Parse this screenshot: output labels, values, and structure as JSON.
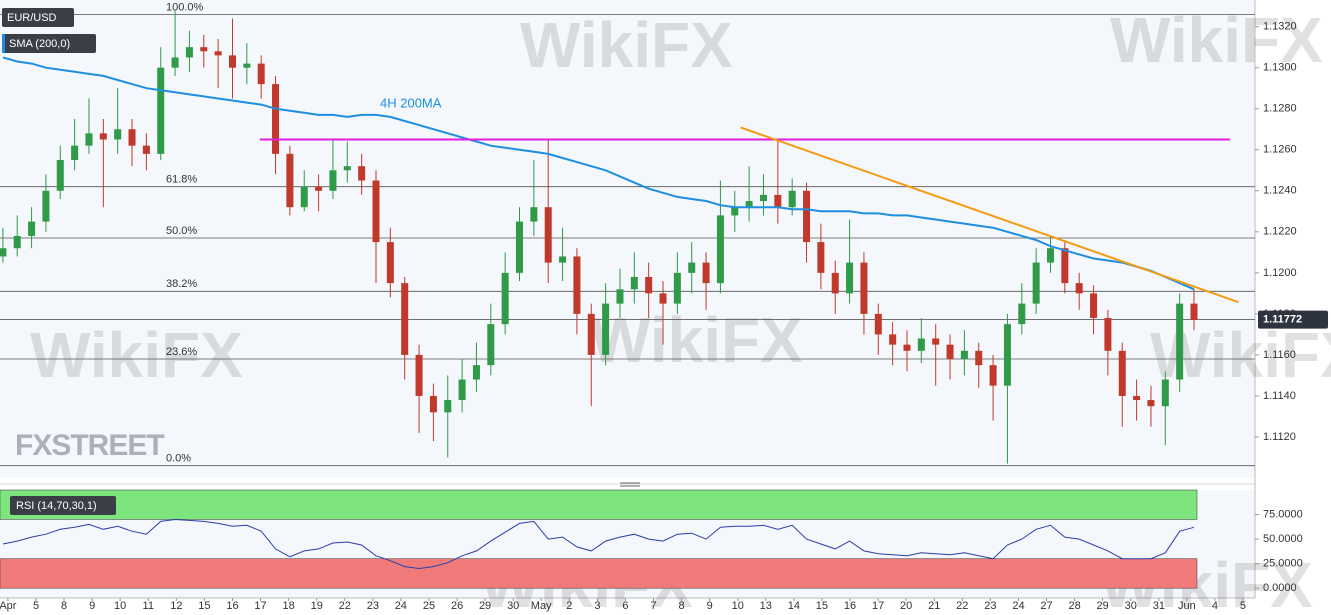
{
  "branding": {
    "watermark": "WikiFX",
    "logo": "FXSTREET"
  },
  "chart_data": [
    {
      "type": "candlestick",
      "title": "EUR/USD",
      "up_color": "#2f9a48",
      "down_color": "#c0392b",
      "xlim": [
        -0.2,
        87.25
      ],
      "xticks": [
        {
          "value": 0.35,
          "label": "Apr"
        },
        {
          "value": 2.31,
          "label": "5"
        },
        {
          "value": 4.26,
          "label": "8"
        },
        {
          "value": 6.22,
          "label": "9"
        },
        {
          "value": 8.17,
          "label": "10"
        },
        {
          "value": 10.13,
          "label": "11"
        },
        {
          "value": 12.09,
          "label": "12"
        },
        {
          "value": 14.04,
          "label": "15"
        },
        {
          "value": 16.0,
          "label": "16"
        },
        {
          "value": 17.95,
          "label": "17"
        },
        {
          "value": 19.91,
          "label": "18"
        },
        {
          "value": 21.87,
          "label": "19"
        },
        {
          "value": 23.82,
          "label": "22"
        },
        {
          "value": 25.78,
          "label": "23"
        },
        {
          "value": 27.73,
          "label": "24"
        },
        {
          "value": 29.69,
          "label": "25"
        },
        {
          "value": 31.65,
          "label": "26"
        },
        {
          "value": 33.6,
          "label": "29"
        },
        {
          "value": 35.56,
          "label": "30"
        },
        {
          "value": 37.51,
          "label": "May"
        },
        {
          "value": 39.47,
          "label": "2"
        },
        {
          "value": 41.43,
          "label": "3"
        },
        {
          "value": 43.38,
          "label": "6"
        },
        {
          "value": 45.34,
          "label": "7"
        },
        {
          "value": 47.29,
          "label": "8"
        },
        {
          "value": 49.25,
          "label": "9"
        },
        {
          "value": 51.21,
          "label": "10"
        },
        {
          "value": 53.16,
          "label": "13"
        },
        {
          "value": 55.12,
          "label": "14"
        },
        {
          "value": 57.07,
          "label": "15"
        },
        {
          "value": 59.03,
          "label": "16"
        },
        {
          "value": 60.99,
          "label": "17"
        },
        {
          "value": 62.94,
          "label": "20"
        },
        {
          "value": 64.9,
          "label": "21"
        },
        {
          "value": 66.85,
          "label": "22"
        },
        {
          "value": 68.81,
          "label": "23"
        },
        {
          "value": 70.77,
          "label": "24"
        },
        {
          "value": 72.72,
          "label": "27"
        },
        {
          "value": 74.68,
          "label": "28"
        },
        {
          "value": 76.63,
          "label": "29"
        },
        {
          "value": 78.59,
          "label": "30"
        },
        {
          "value": 80.55,
          "label": "31"
        },
        {
          "value": 82.5,
          "label": "Jun"
        },
        {
          "value": 84.46,
          "label": "4"
        },
        {
          "value": 86.41,
          "label": "5"
        }
      ],
      "ylim": [
        1.11,
        1.1333
      ],
      "yticks": [
        {
          "value": 1.112,
          "label": "1.1120"
        },
        {
          "value": 1.114,
          "label": "1.1140"
        },
        {
          "value": 1.116,
          "label": "1.1160"
        },
        {
          "value": 1.118,
          "label": "1.1180"
        },
        {
          "value": 1.12,
          "label": "1.1200"
        },
        {
          "value": 1.122,
          "label": "1.1220"
        },
        {
          "value": 1.124,
          "label": "1.1240"
        },
        {
          "value": 1.126,
          "label": "1.1260"
        },
        {
          "value": 1.128,
          "label": "1.1280"
        },
        {
          "value": 1.13,
          "label": "1.1300"
        },
        {
          "value": 1.132,
          "label": "1.1320"
        }
      ],
      "open": [
        1.1208,
        1.1212,
        1.1218,
        1.1225,
        1.124,
        1.1255,
        1.1262,
        1.1268,
        1.1265,
        1.127,
        1.1262,
        1.1258,
        1.13,
        1.1305,
        1.131,
        1.1308,
        1.1306,
        1.13,
        1.1302,
        1.1292,
        1.1258,
        1.1232,
        1.1242,
        1.124,
        1.125,
        1.1252,
        1.1245,
        1.1215,
        1.1195,
        1.116,
        1.114,
        1.1132,
        1.1138,
        1.1148,
        1.1155,
        1.1175,
        1.12,
        1.1225,
        1.1232,
        1.1205,
        1.1208,
        1.118,
        1.116,
        1.1185,
        1.1192,
        1.1198,
        1.119,
        1.1185,
        1.12,
        1.1205,
        1.1195,
        1.1228,
        1.1232,
        1.1235,
        1.1238,
        1.1232,
        1.124,
        1.1215,
        1.12,
        1.119,
        1.1205,
        1.118,
        1.117,
        1.1165,
        1.1162,
        1.1168,
        1.1165,
        1.1158,
        1.1162,
        1.1155,
        1.1145,
        1.1175,
        1.1185,
        1.1205,
        1.1212,
        1.1195,
        1.119,
        1.1178,
        1.1162,
        1.114,
        1.1138,
        1.1135,
        1.1148,
        1.1185
      ],
      "high": [
        1.1222,
        1.1228,
        1.1232,
        1.1248,
        1.1262,
        1.1275,
        1.1285,
        1.1275,
        1.129,
        1.1275,
        1.1268,
        1.131,
        1.1328,
        1.1318,
        1.1316,
        1.1314,
        1.1324,
        1.1312,
        1.1306,
        1.1296,
        1.1262,
        1.125,
        1.1248,
        1.1265,
        1.1264,
        1.1258,
        1.125,
        1.1222,
        1.1198,
        1.1165,
        1.1146,
        1.115,
        1.1158,
        1.1166,
        1.1185,
        1.121,
        1.1232,
        1.1255,
        1.1265,
        1.1222,
        1.1212,
        1.1185,
        1.1195,
        1.1202,
        1.121,
        1.1205,
        1.1196,
        1.121,
        1.1215,
        1.121,
        1.1245,
        1.124,
        1.1252,
        1.1248,
        1.1265,
        1.1246,
        1.1244,
        1.1224,
        1.1206,
        1.1226,
        1.121,
        1.1185,
        1.1176,
        1.1172,
        1.1178,
        1.1175,
        1.117,
        1.1172,
        1.1166,
        1.116,
        1.118,
        1.1195,
        1.1212,
        1.1218,
        1.1216,
        1.12,
        1.1194,
        1.1182,
        1.1166,
        1.1148,
        1.1145,
        1.1152,
        1.119,
        1.1192
      ],
      "low": [
        1.1205,
        1.1208,
        1.1212,
        1.122,
        1.1236,
        1.125,
        1.1258,
        1.1232,
        1.1258,
        1.1252,
        1.125,
        1.1255,
        1.1296,
        1.1298,
        1.13,
        1.129,
        1.1285,
        1.1292,
        1.1285,
        1.1248,
        1.1228,
        1.123,
        1.123,
        1.1236,
        1.1244,
        1.1238,
        1.1195,
        1.1188,
        1.1148,
        1.1122,
        1.1118,
        1.111,
        1.1132,
        1.1142,
        1.115,
        1.117,
        1.1196,
        1.1218,
        1.1195,
        1.1196,
        1.117,
        1.1135,
        1.1155,
        1.1178,
        1.1185,
        1.1178,
        1.1165,
        1.118,
        1.119,
        1.1182,
        1.119,
        1.122,
        1.1225,
        1.1228,
        1.1224,
        1.1228,
        1.1205,
        1.1192,
        1.118,
        1.1185,
        1.117,
        1.116,
        1.1155,
        1.1152,
        1.1156,
        1.1145,
        1.1148,
        1.115,
        1.1144,
        1.1128,
        1.1107,
        1.117,
        1.118,
        1.12,
        1.119,
        1.1182,
        1.117,
        1.115,
        1.1125,
        1.1128,
        1.1125,
        1.1116,
        1.1142,
        1.1172
      ],
      "close": [
        1.1212,
        1.1218,
        1.1225,
        1.124,
        1.1255,
        1.1262,
        1.1268,
        1.1265,
        1.127,
        1.1262,
        1.1258,
        1.13,
        1.1305,
        1.131,
        1.1308,
        1.1306,
        1.13,
        1.1302,
        1.1292,
        1.1258,
        1.1232,
        1.1242,
        1.124,
        1.125,
        1.1252,
        1.1245,
        1.1215,
        1.1195,
        1.116,
        1.114,
        1.1132,
        1.1138,
        1.1148,
        1.1155,
        1.1175,
        1.12,
        1.1225,
        1.1232,
        1.1205,
        1.1208,
        1.118,
        1.116,
        1.1185,
        1.1192,
        1.1198,
        1.119,
        1.1185,
        1.12,
        1.1205,
        1.1195,
        1.1228,
        1.1232,
        1.1235,
        1.1238,
        1.1232,
        1.124,
        1.1215,
        1.12,
        1.119,
        1.1205,
        1.118,
        1.117,
        1.1165,
        1.1162,
        1.1168,
        1.1165,
        1.1158,
        1.1162,
        1.1155,
        1.1145,
        1.1175,
        1.1185,
        1.1205,
        1.1212,
        1.1195,
        1.119,
        1.1178,
        1.1162,
        1.114,
        1.1138,
        1.1135,
        1.1148,
        1.1185,
        1.1177
      ],
      "overlays": [
        {
          "name": "SMA (200,0)",
          "color": "#1e8fe0",
          "values": [
            1.1305,
            1.1303,
            1.1302,
            1.13,
            1.1299,
            1.1298,
            1.1297,
            1.1296,
            1.1294,
            1.1292,
            1.129,
            1.1289,
            1.1288,
            1.1287,
            1.1286,
            1.1285,
            1.1284,
            1.1283,
            1.1282,
            1.128,
            1.1279,
            1.1278,
            1.1277,
            1.1277,
            1.1276,
            1.1277,
            1.1277,
            1.1276,
            1.1274,
            1.1272,
            1.127,
            1.1268,
            1.1266,
            1.1264,
            1.1262,
            1.1261,
            1.126,
            1.1259,
            1.1258,
            1.1256,
            1.1254,
            1.1252,
            1.125,
            1.1247,
            1.1244,
            1.1241,
            1.1239,
            1.1237,
            1.1236,
            1.1235,
            1.1233,
            1.1232,
            1.1232,
            1.1232,
            1.1232,
            1.1231,
            1.1231,
            1.123,
            1.123,
            1.123,
            1.1229,
            1.1229,
            1.1228,
            1.1228,
            1.1227,
            1.1226,
            1.1225,
            1.1224,
            1.1223,
            1.1222,
            1.122,
            1.1218,
            1.1216,
            1.1213,
            1.1211,
            1.1209,
            1.1207,
            1.1206,
            1.1205,
            1.1203,
            1.1201,
            1.1198,
            1.1195,
            1.1192
          ]
        }
      ],
      "fib_levels": [
        {
          "label": "100.0%",
          "value": 1.1326
        },
        {
          "label": "61.8%",
          "value": 1.1242
        },
        {
          "label": "50.0%",
          "value": 1.1217
        },
        {
          "label": "38.2%",
          "value": 1.1191
        },
        {
          "label": "23.6%",
          "value": 1.1158
        },
        {
          "label": "0.0%",
          "value": 1.1106
        }
      ],
      "lines": [
        {
          "color": "#e21ee0",
          "x": [
            17.9,
            85.5
          ],
          "y": [
            1.1265,
            1.1265
          ]
        },
        {
          "color": "#f39c12",
          "x": [
            51.4,
            86.1
          ],
          "y": [
            1.12709,
            1.11857
          ]
        }
      ],
      "annotation": "4H 200MA",
      "last_price": 1.11772
    },
    {
      "type": "line",
      "title": "RSI (14,70,30,1)",
      "color": "#2c3ea8",
      "ylim": [
        -10,
        100
      ],
      "yticks": [
        {
          "value": 0,
          "label": "0.0000"
        },
        {
          "value": 25,
          "label": "25.0000"
        },
        {
          "value": 50,
          "label": "50.0000"
        },
        {
          "value": 75,
          "label": "75.0000"
        }
      ],
      "bands": [
        {
          "from": 70,
          "to": 100,
          "color": "#7ee57e"
        },
        {
          "from": 0,
          "to": 30,
          "color": "#f07a7a"
        }
      ],
      "values": [
        45,
        48,
        52,
        55,
        60,
        62,
        65,
        60,
        63,
        58,
        55,
        68,
        70,
        69,
        68,
        66,
        63,
        64,
        58,
        40,
        32,
        38,
        40,
        46,
        47,
        44,
        33,
        28,
        22,
        20,
        22,
        26,
        33,
        38,
        48,
        57,
        66,
        68,
        50,
        52,
        42,
        38,
        48,
        52,
        55,
        50,
        48,
        55,
        56,
        50,
        62,
        63,
        63,
        64,
        60,
        64,
        50,
        45,
        40,
        48,
        38,
        35,
        34,
        33,
        36,
        35,
        34,
        36,
        33,
        30,
        44,
        50,
        60,
        64,
        52,
        50,
        44,
        38,
        30,
        30,
        30,
        36,
        58,
        62
      ]
    }
  ]
}
